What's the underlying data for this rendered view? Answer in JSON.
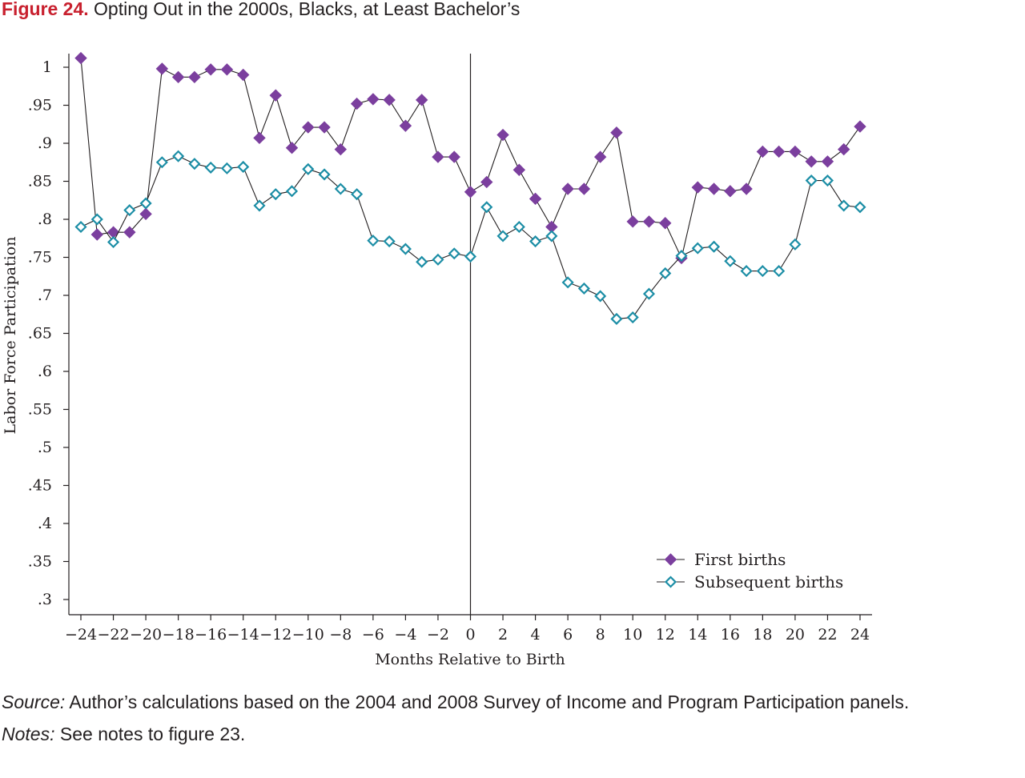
{
  "figure": {
    "label": "Figure 24.",
    "title": "Opting Out in the 2000s, Blacks, at Least Bachelor’s"
  },
  "chart_data": {
    "type": "line",
    "title": "Opting Out in the 2000s, Blacks, at Least Bachelor’s",
    "xlabel": "Months Relative to Birth",
    "ylabel": "Labor Force Participation",
    "xlim": [
      -24,
      24
    ],
    "ylim": [
      0.3,
      1.0
    ],
    "x_ticks": [
      -24,
      -22,
      -20,
      -18,
      -16,
      -14,
      -12,
      -10,
      -8,
      -6,
      -4,
      -2,
      0,
      2,
      4,
      6,
      8,
      10,
      12,
      14,
      16,
      18,
      20,
      22,
      24
    ],
    "x_tick_labels": [
      "−24",
      "−22",
      "−20",
      "−18",
      "−16",
      "−14",
      "−12",
      "−10",
      "−8",
      "−6",
      "−4",
      "−2",
      "0",
      "2",
      "4",
      "6",
      "8",
      "10",
      "12",
      "14",
      "16",
      "18",
      "20",
      "22",
      "24"
    ],
    "y_ticks": [
      0.3,
      0.35,
      0.4,
      0.45,
      0.5,
      0.55,
      0.6,
      0.65,
      0.7,
      0.75,
      0.8,
      0.85,
      0.9,
      0.95,
      1.0
    ],
    "y_tick_labels": [
      ".3",
      ".35",
      ".4",
      ".45",
      ".5",
      ".55",
      ".6",
      ".65",
      ".7",
      ".75",
      ".8",
      ".85",
      ".9",
      ".95",
      "1"
    ],
    "reference_line_x": 0,
    "grid": false,
    "legend_position": "bottom-right",
    "x": [
      -24,
      -23,
      -22,
      -21,
      -20,
      -19,
      -18,
      -17,
      -16,
      -15,
      -14,
      -13,
      -12,
      -11,
      -10,
      -9,
      -8,
      -7,
      -6,
      -5,
      -4,
      -3,
      -2,
      -1,
      0,
      1,
      2,
      3,
      4,
      5,
      6,
      7,
      8,
      9,
      10,
      11,
      12,
      13,
      14,
      15,
      16,
      17,
      18,
      19,
      20,
      21,
      22,
      23,
      24
    ],
    "series": [
      {
        "name": "First births",
        "color": "#7b3f9e",
        "marker": "filled-diamond",
        "values": [
          1.012,
          0.78,
          0.783,
          0.783,
          0.807,
          0.998,
          0.987,
          0.987,
          0.997,
          0.997,
          0.99,
          0.907,
          0.963,
          0.894,
          0.921,
          0.921,
          0.892,
          0.952,
          0.958,
          0.957,
          0.923,
          0.957,
          0.882,
          0.882,
          0.836,
          0.849,
          0.911,
          0.865,
          0.827,
          0.79,
          0.84,
          0.84,
          0.882,
          0.914,
          0.797,
          0.797,
          0.795,
          0.749,
          0.842,
          0.84,
          0.837,
          0.84,
          0.889,
          0.889,
          0.889,
          0.876,
          0.876,
          0.892,
          0.922
        ]
      },
      {
        "name": "Subsequent births",
        "color": "#1c8ea6",
        "marker": "hollow-diamond",
        "values": [
          0.79,
          0.8,
          0.77,
          0.812,
          0.821,
          0.875,
          0.883,
          0.873,
          0.868,
          0.867,
          0.869,
          0.818,
          0.833,
          0.837,
          0.866,
          0.859,
          0.84,
          0.833,
          0.772,
          0.771,
          0.761,
          0.744,
          0.747,
          0.755,
          0.751,
          0.816,
          0.778,
          0.79,
          0.771,
          0.778,
          0.717,
          0.709,
          0.699,
          0.669,
          0.671,
          0.702,
          0.729,
          0.752,
          0.762,
          0.764,
          0.745,
          0.732,
          0.732,
          0.732,
          0.767,
          0.851,
          0.851,
          0.818,
          0.816
        ]
      }
    ]
  },
  "source_label": "Source:",
  "source_text": "Author’s calculations based on the 2004 and 2008 Survey of Income and Program Participation panels.",
  "notes_label": "Notes:",
  "notes_text": "See notes to figure 23."
}
